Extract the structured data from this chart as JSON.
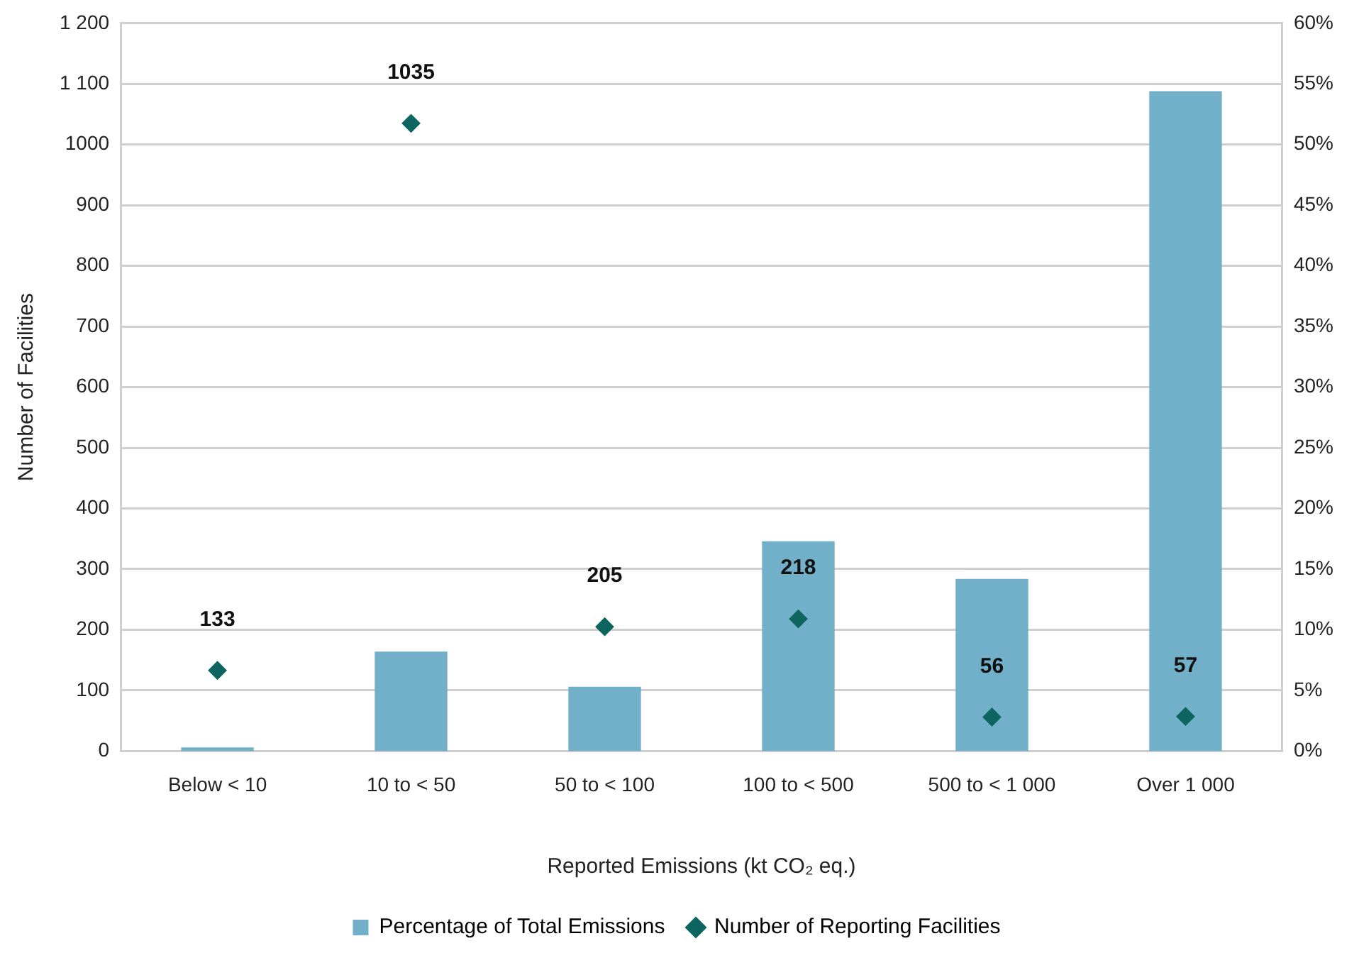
{
  "chart_data": {
    "type": "bar",
    "xlabel": "Reported Emissions (kt CO₂ eq.)",
    "ylabel": "Number of Facilities",
    "categories": [
      "Below < 10",
      "10 to < 50",
      "50 to < 100",
      "100 to < 500",
      "500 to < 1 000",
      "Over 1 000"
    ],
    "series": [
      {
        "name": "Percentage of Total Emissions",
        "axis": "y2",
        "color": "#72afc9",
        "values": [
          0.3,
          8.2,
          5.3,
          17.3,
          14.2,
          54.4
        ]
      },
      {
        "name": "Number of Reporting Facilities",
        "type": "scatter",
        "axis": "y",
        "color": "#0e6560",
        "marker": "diamond",
        "data_labels": true,
        "values": [
          133,
          1035,
          205,
          218,
          56,
          57
        ]
      }
    ],
    "ylim": [
      0,
      1200
    ],
    "yticks": [
      0,
      100,
      200,
      300,
      400,
      500,
      600,
      700,
      800,
      900,
      1000,
      {
        "value": 1100,
        "label": "1 100"
      },
      {
        "value": 1200,
        "label": "1 200"
      }
    ],
    "y2lim": [
      0,
      60
    ],
    "y2ticks": [
      {
        "value": 0,
        "label": "0%"
      },
      {
        "value": 5,
        "label": "5%"
      },
      {
        "value": 10,
        "label": "10%"
      },
      {
        "value": 15,
        "label": "15%"
      },
      {
        "value": 20,
        "label": "20%"
      },
      {
        "value": 25,
        "label": "25%"
      },
      {
        "value": 30,
        "label": "30%"
      },
      {
        "value": 35,
        "label": "35%"
      },
      {
        "value": 40,
        "label": "40%"
      },
      {
        "value": 45,
        "label": "45%"
      },
      {
        "value": 50,
        "label": "50%"
      },
      {
        "value": 55,
        "label": "55%"
      },
      {
        "value": 60,
        "label": "60%"
      }
    ],
    "grid": "y",
    "legend": "bottom"
  }
}
